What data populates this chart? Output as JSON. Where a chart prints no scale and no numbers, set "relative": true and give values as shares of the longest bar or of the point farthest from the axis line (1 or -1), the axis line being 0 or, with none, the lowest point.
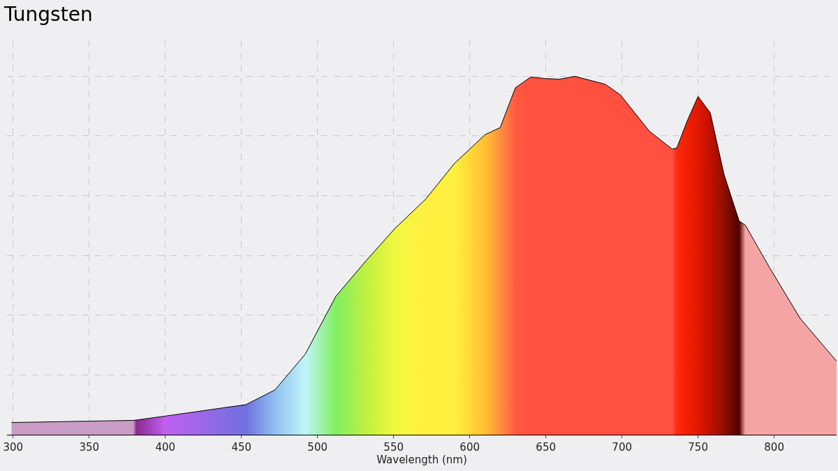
{
  "chart_data": {
    "type": "area",
    "title": "Tungsten",
    "xlabel": "Wavelength (nm)",
    "relative": true,
    "x": [
      299,
      379,
      381,
      400,
      453,
      472,
      492,
      512,
      532,
      551,
      571,
      590,
      610,
      620,
      630,
      640,
      649,
      659,
      669,
      689,
      699,
      718,
      733,
      736,
      743,
      750,
      758,
      767,
      777,
      781,
      797,
      817,
      841
    ],
    "values": [
      0.034,
      0.04,
      0.041,
      0.052,
      0.084,
      0.125,
      0.225,
      0.386,
      0.486,
      0.576,
      0.657,
      0.757,
      0.837,
      0.857,
      0.968,
      0.998,
      0.994,
      0.992,
      1,
      0.978,
      0.948,
      0.847,
      0.797,
      0.8,
      0.877,
      0.944,
      0.898,
      0.727,
      0.596,
      0.585,
      0.466,
      0.325,
      0.205
    ],
    "colors": [
      "#c89cc4",
      "#c89cc4",
      "#8a2a90",
      "#c060f0",
      "#7070e0",
      "#90c0f0",
      "#c0f4f8",
      "#80f060",
      "#c0f040",
      "#f0f840",
      "#fff040",
      "#fff040",
      "#ffc030",
      "#ff9040",
      "#ff5a40",
      "#ff5040",
      "#ff5040",
      "#ff5040",
      "#ff5040",
      "#ff5040",
      "#ff5040",
      "#ff5040",
      "#ff5040",
      "#ff2a10",
      "#f02000",
      "#e01800",
      "#c01000",
      "#901000",
      "#500000",
      "#f4a4a4",
      "#f4a4a4",
      "#f4a4a4",
      "#f4a4a4"
    ],
    "xlim": [
      296,
      841
    ],
    "xticks": [
      300,
      350,
      400,
      450,
      500,
      550,
      600,
      650,
      700,
      750,
      800
    ],
    "grid": true
  }
}
